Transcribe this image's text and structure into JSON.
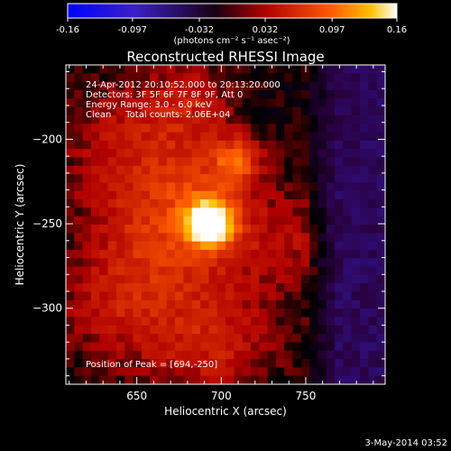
{
  "title": "Reconstructed RHESSI Image",
  "colorbar": {
    "ticks": [
      "-0.16",
      "-0.097",
      "-0.032",
      "0.032",
      "0.097",
      "0.16"
    ],
    "tick_values": [
      -0.16,
      -0.097,
      -0.032,
      0.032,
      0.097,
      0.16
    ],
    "range": [
      -0.16,
      0.16
    ],
    "units_text": "(photons cm⁻² s⁻¹ asec⁻²)"
  },
  "info": {
    "line1": "24-Apr-2012 20:10:52.000 to 20:13:20.000",
    "line2": "Detectors: 3F 5F 6F 7F 8F 9F, Att 0",
    "line3": "Energy Range: 3.0 - 6.0 keV",
    "line4": "Clean     Total counts: 2.06E+04"
  },
  "peak_text": "Position of Peak = [694,-250]",
  "footer_date": "3-May-2014 03:52",
  "chart_data": {
    "type": "heatmap",
    "title": "Reconstructed RHESSI Image",
    "xlabel": "Heliocentric X (arcsec)",
    "ylabel": "Heliocentric Y (arcsec)",
    "xlim": [
      608,
      797
    ],
    "ylim": [
      -345,
      -156
    ],
    "x_ticks": [
      650,
      700,
      750
    ],
    "y_ticks": [
      -200,
      -250,
      -300
    ],
    "x_tick_labels": [
      "650",
      "700",
      "750"
    ],
    "y_tick_labels": [
      "−200",
      "−250",
      "−300"
    ],
    "peak": [
      694,
      -250
    ],
    "peak_value": 0.16,
    "sources": [
      {
        "x": 694,
        "y": -250,
        "amp": 0.16,
        "sigma": 10
      },
      {
        "x": 709,
        "y": -213,
        "amp": 0.07,
        "sigma": 9
      },
      {
        "x": 690,
        "y": -225,
        "amp": 0.04,
        "sigma": 25
      },
      {
        "x": 665,
        "y": -255,
        "amp": 0.05,
        "sigma": 30
      },
      {
        "x": 640,
        "y": -200,
        "amp": 0.035,
        "sigma": 25
      },
      {
        "x": 640,
        "y": -300,
        "amp": 0.035,
        "sigma": 28
      },
      {
        "x": 700,
        "y": -310,
        "amp": 0.03,
        "sigma": 30
      },
      {
        "x": 740,
        "y": -260,
        "amp": 0.03,
        "sigma": 20
      },
      {
        "x": 680,
        "y": -175,
        "amp": 0.035,
        "sigma": 18
      },
      {
        "x": 690,
        "y": -330,
        "amp": 0.02,
        "sigma": 20
      }
    ],
    "negative_region_x_start": 765,
    "negative_level": -0.045,
    "colormap": [
      "#0000ff",
      "#5a00a0",
      "#000000",
      "#b00000",
      "#ff4000",
      "#ffb000",
      "#ffffff"
    ]
  }
}
